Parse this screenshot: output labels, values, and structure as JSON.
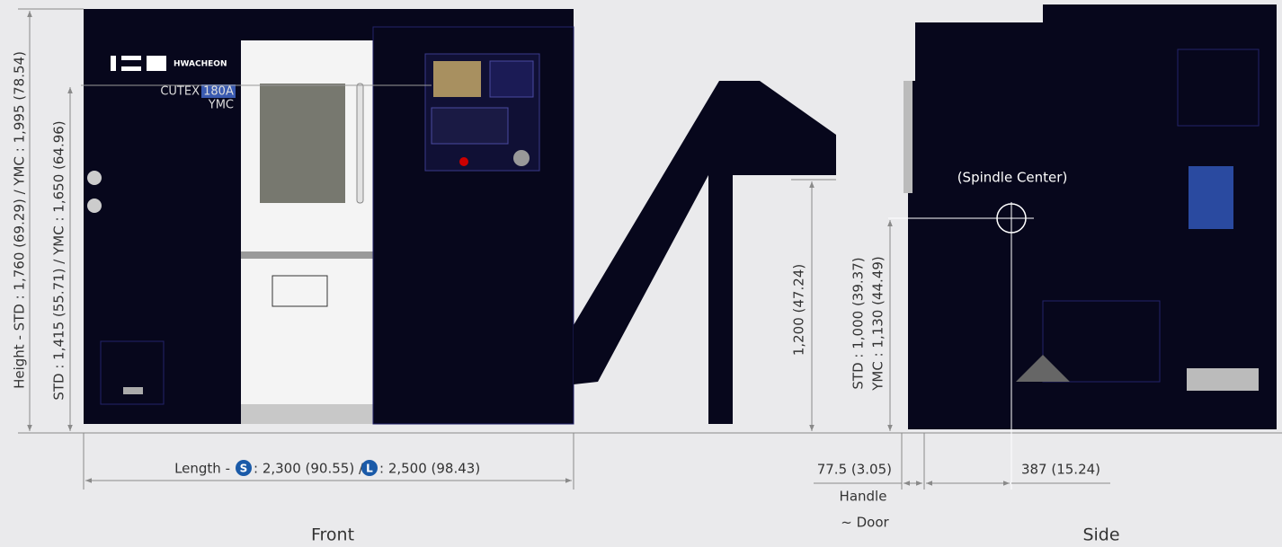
{
  "front": {
    "label": "Front",
    "brand": "HWACHEON",
    "model": "CUTEX",
    "model_badge": "180A",
    "variant": "YMC",
    "height_dimension": "Height - STD : 1,760 (69.29) / YMC : 1,995 (78.54)",
    "window_dimension": "STD : 1,415 (55.71) / YMC : 1,650 (64.96)",
    "length_dimension": {
      "prefix": "Length -",
      "short_badge": "S",
      "short": ": 2,300 (90.55) /",
      "long_badge": "L",
      "long": ": 2,500 (98.43)"
    },
    "conveyor_dimension": "1,200 (47.24)"
  },
  "side": {
    "label": "Side",
    "spindle_label": "(Spindle Center)",
    "spindle_std": "STD : 1,000 (39.37)",
    "spindle_ymc": "YMC : 1,130 (44.49)",
    "handle_offset": "77.5 (3.05)",
    "handle_label": "Handle",
    "door_label": "~ Door",
    "spindle_offset": "387 (15.24)"
  }
}
